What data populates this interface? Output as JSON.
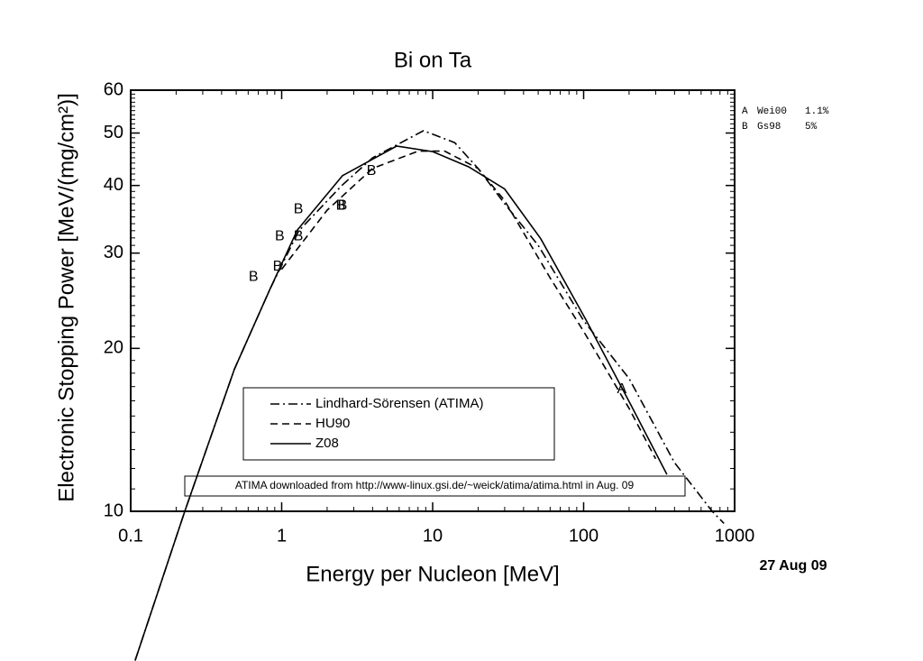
{
  "chart_data": {
    "type": "line",
    "title": "Bi on Ta",
    "x_label": "Energy per Nucleon [MeV]",
    "y_label": "Electronic Stopping Power [MeV/(mg/cm²)]",
    "log_x": true,
    "log_y": true,
    "xlim": [
      0.1,
      1000
    ],
    "ylim": [
      10,
      60
    ],
    "xticks": [
      0.1,
      1,
      10,
      100,
      1000
    ],
    "yticks": [
      10,
      20,
      30,
      40,
      50,
      60
    ],
    "legend_position": "lower center",
    "series": [
      {
        "name": "Lindhard-Sörensen (ATIMA)",
        "style": "dashdot",
        "color": "#000000",
        "x": [
          0.107,
          0.228,
          0.486,
          0.84,
          1.3,
          2.5,
          4,
          8.7,
          14,
          20,
          30,
          50,
          100,
          200,
          400,
          710,
          850
        ],
        "values": [
          5.3,
          10,
          18.3,
          25.8,
          33,
          40,
          45,
          50.5,
          48,
          43,
          37,
          31,
          22.5,
          17.6,
          12.3,
          10,
          9.5
        ]
      },
      {
        "name": "HU90",
        "style": "dashed",
        "color": "#000000",
        "x": [
          1,
          2,
          4,
          8,
          12,
          20,
          30,
          60,
          100,
          200,
          300
        ],
        "values": [
          28,
          36,
          43,
          46.3,
          46.3,
          43,
          37.5,
          27,
          21.5,
          15.5,
          12.5
        ]
      },
      {
        "name": "Z08",
        "style": "solid",
        "color": "#000000",
        "x": [
          0.107,
          0.228,
          0.486,
          0.84,
          1.27,
          2.53,
          5.77,
          10,
          17.3,
          30,
          52,
          103.5,
          206,
          356
        ],
        "values": [
          5.3,
          10,
          18.3,
          25.8,
          33.1,
          41.7,
          47.3,
          46.2,
          43.3,
          39.4,
          31.9,
          22.6,
          15.7,
          11.7
        ]
      }
    ],
    "datasets": [
      {
        "marker": "A",
        "name": "Wei00",
        "uncertainty": "1.1%",
        "x": [
          179
        ],
        "values": [
          16.8
        ]
      },
      {
        "marker": "B",
        "name": "Gs98",
        "uncertainty": "5%",
        "x": [
          0.65,
          0.94,
          0.97,
          1.29,
          1.29,
          2.46,
          2.53,
          3.93
        ],
        "values": [
          27.1,
          28.3,
          32.2,
          32.2,
          36.1,
          36.7,
          36.7,
          42.5
        ]
      }
    ],
    "note": "ATIMA downloaded from http://www-linux.gsi.de/~weick/atima/atima.html in Aug. 09",
    "date": "27 Aug 09"
  }
}
